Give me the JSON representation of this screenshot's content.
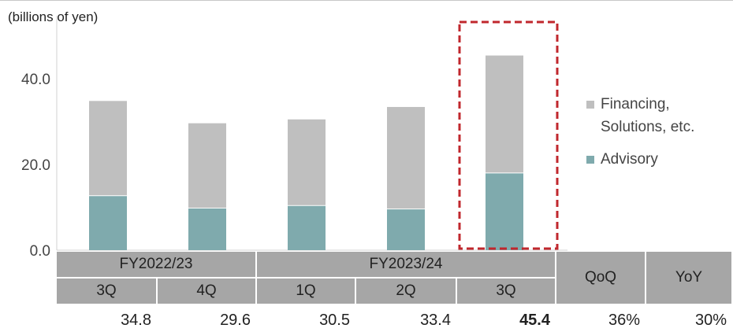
{
  "unit_label": "(billions of yen)",
  "legend": {
    "financing_line1": "Financing,",
    "financing_line2": "Solutions, etc.",
    "advisory": "Advisory"
  },
  "table": {
    "fy1": "FY2022/23",
    "fy2": "FY2023/24",
    "q1": "3Q",
    "q2": "4Q",
    "q3": "1Q",
    "q4": "2Q",
    "q5": "3Q",
    "qoq": "QoQ",
    "yoy": "YoY"
  },
  "totals": {
    "v1": "34.8",
    "v2": "29.6",
    "v3": "30.5",
    "v4": "33.4",
    "v5": "45.4",
    "qoq": "36%",
    "yoy": "30%"
  },
  "chart_data": {
    "type": "bar",
    "stacked": true,
    "categories": [
      "FY2022/23 3Q",
      "FY2022/23 4Q",
      "FY2023/24 1Q",
      "FY2023/24 2Q",
      "FY2023/24 3Q"
    ],
    "series": [
      {
        "name": "Advisory",
        "color": "#7faaad",
        "values": [
          12.8,
          9.9,
          10.5,
          9.7,
          18.1
        ]
      },
      {
        "name": "Financing, Solutions, etc.",
        "color": "#bfbfbf",
        "values": [
          22.0,
          19.7,
          20.0,
          23.7,
          27.3
        ]
      }
    ],
    "totals": [
      34.8,
      29.6,
      30.5,
      33.4,
      45.4
    ],
    "ylim": [
      0,
      48
    ],
    "yticks": [
      "0.0",
      "20.0",
      "40.0"
    ],
    "ytick_values": [
      0,
      20,
      40
    ],
    "highlight_index": 4,
    "highlight_color": "#c0272d",
    "grid": false
  }
}
